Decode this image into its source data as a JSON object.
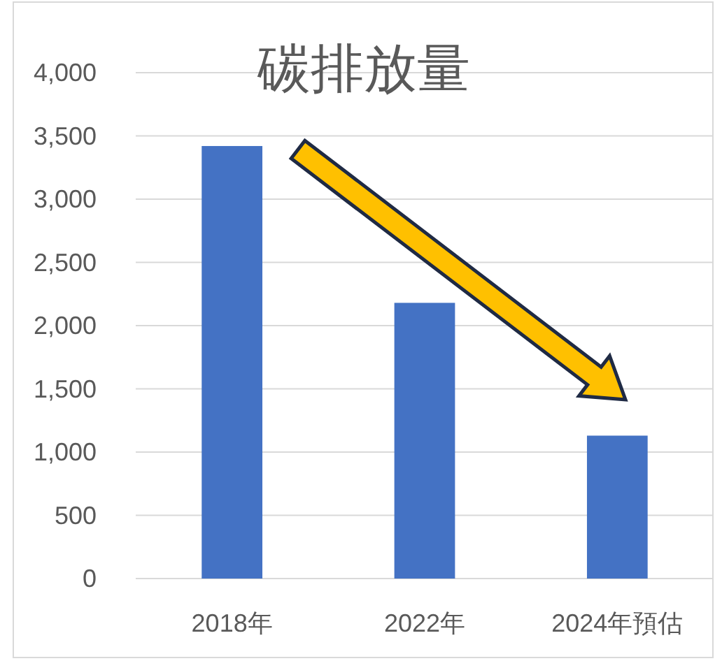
{
  "chart_data": {
    "type": "bar",
    "title": "碳排放量",
    "categories": [
      "2018年",
      "2022年",
      "2024年預估"
    ],
    "values": [
      3420,
      2180,
      1130
    ],
    "color": "#4472c4",
    "ylim": [
      0,
      4000
    ],
    "yticks": [
      {
        "value": 0,
        "label": "0"
      },
      {
        "value": 500,
        "label": "500"
      },
      {
        "value": 1000,
        "label": "1,000"
      },
      {
        "value": 1500,
        "label": "1,500"
      },
      {
        "value": 2000,
        "label": "2,000"
      },
      {
        "value": 2500,
        "label": "2,500"
      },
      {
        "value": 3000,
        "label": "3,000"
      },
      {
        "value": 3500,
        "label": "3,500"
      },
      {
        "value": 4000,
        "label": "4,000"
      }
    ],
    "grid": "y"
  }
}
